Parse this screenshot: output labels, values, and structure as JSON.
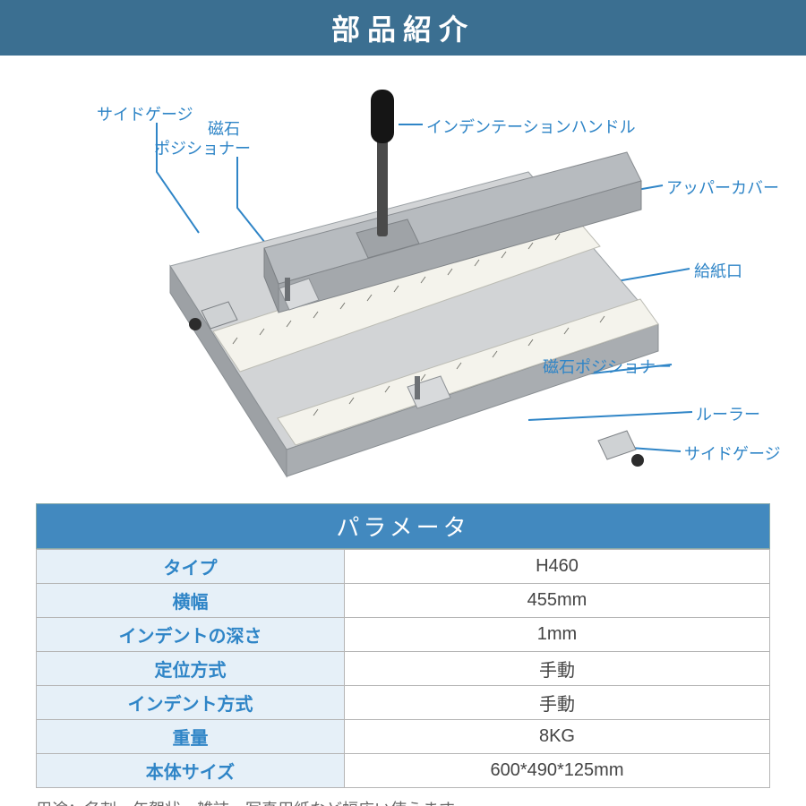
{
  "header": {
    "title": "部品紹介"
  },
  "labels": {
    "side_gauge_top": "サイドゲージ",
    "magnet_pos_top1": "磁石",
    "magnet_pos_top2": "ポジショナー",
    "indent_handle": "インデンテーションハンドル",
    "upper_cover": "アッパーカバー",
    "paper_slot": "給紙口",
    "magnet_pos_bottom": "磁石ポジショナー",
    "ruler": "ルーラー",
    "side_gauge_bottom": "サイドゲージ"
  },
  "diagram_style": {
    "label_color": "#2f85c7",
    "label_fontsize": 18,
    "leader_color": "#2f85c7",
    "leader_width": 2,
    "device_body": "#c7c9cb",
    "device_body_light": "#d9dbdc",
    "device_dark": "#8f9498",
    "ruler_fill": "#f5f5f0",
    "handle_color": "#1a1a1a",
    "knob_color": "#2c2c2c"
  },
  "table": {
    "title": "パラメータ",
    "rows": [
      {
        "key": "タイプ",
        "val": "H460"
      },
      {
        "key": "横幅",
        "val": "455mm"
      },
      {
        "key": "インデントの深さ",
        "val": "1mm"
      },
      {
        "key": "定位方式",
        "val": "手動"
      },
      {
        "key": "インデント方式",
        "val": "手動"
      },
      {
        "key": "重量",
        "val": "8KG"
      },
      {
        "key": "本体サイズ",
        "val": "600*490*125mm"
      }
    ],
    "style": {
      "title_bg": "#4289bf",
      "title_color": "#ffffff",
      "title_fontsize": 26,
      "key_bg": "#e6f0f8",
      "key_color": "#2f85c7",
      "val_bg": "#ffffff",
      "val_color": "#444444",
      "border_color": "#b5b5b5",
      "fontsize": 20
    }
  },
  "usage": "用途：名刺、年賀状、雑誌、写真用紙など幅広い使えます。"
}
